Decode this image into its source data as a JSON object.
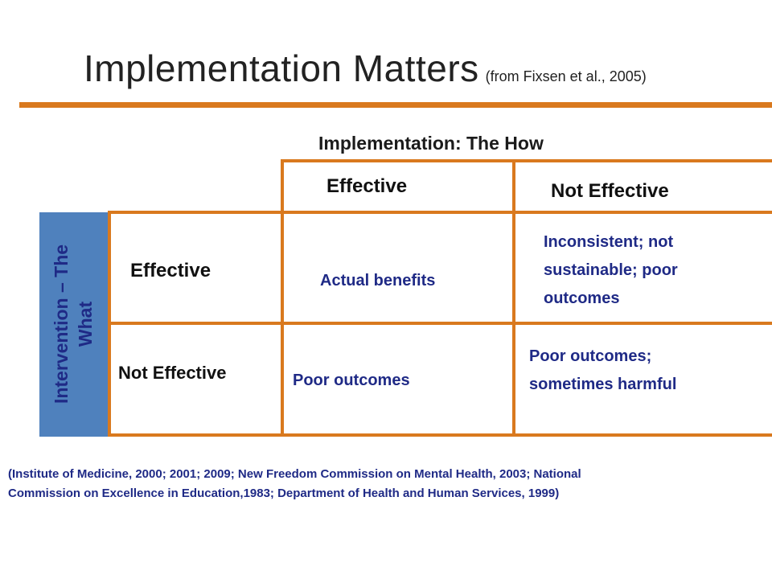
{
  "slide": {
    "title": "Implementation Matters",
    "title_source": "(from Fixsen et al., 2005)"
  },
  "matrix": {
    "column_axis_label": "Implementation: The How",
    "row_axis_label": "Intervention – The What",
    "columns": [
      "Effective",
      "Not Effective"
    ],
    "rows": [
      "Effective",
      "Not Effective"
    ],
    "cells": [
      [
        "Actual benefits",
        "Inconsistent; not sustainable; poor outcomes"
      ],
      [
        "Poor outcomes",
        "Poor outcomes; sometimes harmful"
      ]
    ]
  },
  "footnote": "(Institute of Medicine, 2000; 2001; 2009; New Freedom Commission on Mental Health, 2003; National Commission on Excellence in Education,1983; Department of Health and Human Services, 1999)",
  "colors": {
    "accent_orange": "#D9791E",
    "row_label_bar_blue": "#4F81BD",
    "text_navy": "#1F2A86"
  }
}
